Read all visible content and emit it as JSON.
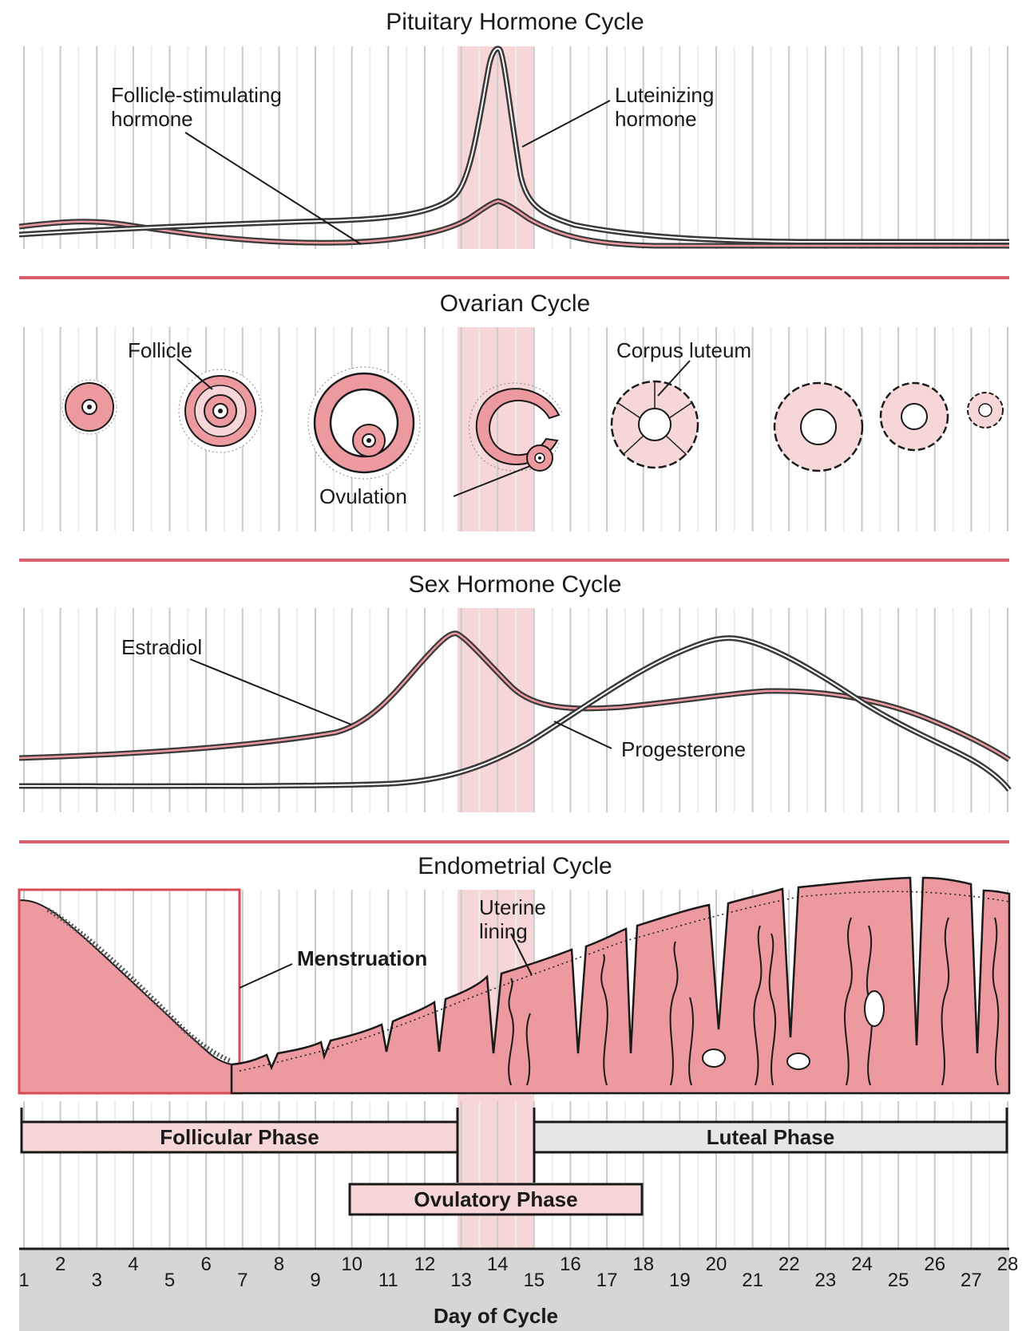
{
  "colors": {
    "pink_fill": "#ec9aa0",
    "pink_light": "#f7d6d8",
    "red_line": "#d9606a",
    "dark_line": "#3a3a3a",
    "grid": "#c9c9c9",
    "axis_bar": "#d6d6d6",
    "luteal_fill": "#e6e6e6"
  },
  "panels": {
    "pituitary": {
      "title": "Pituitary Hormone Cycle",
      "fsh_label_line1": "Follicle-stimulating",
      "fsh_label_line2": "hormone",
      "lh_label_line1": "Luteinizing",
      "lh_label_line2": "hormone"
    },
    "ovarian": {
      "title": "Ovarian Cycle",
      "follicle_label": "Follicle",
      "corpus_label": "Corpus luteum",
      "ovulation_label": "Ovulation"
    },
    "sex_hormone": {
      "title": "Sex Hormone Cycle",
      "estradiol_label": "Estradiol",
      "progesterone_label": "Progesterone"
    },
    "endometrial": {
      "title": "Endometrial Cycle",
      "lining_label_line1": "Uterine",
      "lining_label_line2": "lining",
      "menstruation_label": "Menstruation"
    }
  },
  "phases": {
    "follicular": "Follicular Phase",
    "luteal": "Luteal Phase",
    "ovulatory": "Ovulatory Phase"
  },
  "axis": {
    "label": "Day of Cycle",
    "days": [
      "1",
      "2",
      "3",
      "4",
      "5",
      "6",
      "7",
      "8",
      "9",
      "10",
      "11",
      "12",
      "13",
      "14",
      "15",
      "16",
      "17",
      "18",
      "19",
      "20",
      "21",
      "22",
      "23",
      "24",
      "25",
      "26",
      "27",
      "28"
    ]
  }
}
